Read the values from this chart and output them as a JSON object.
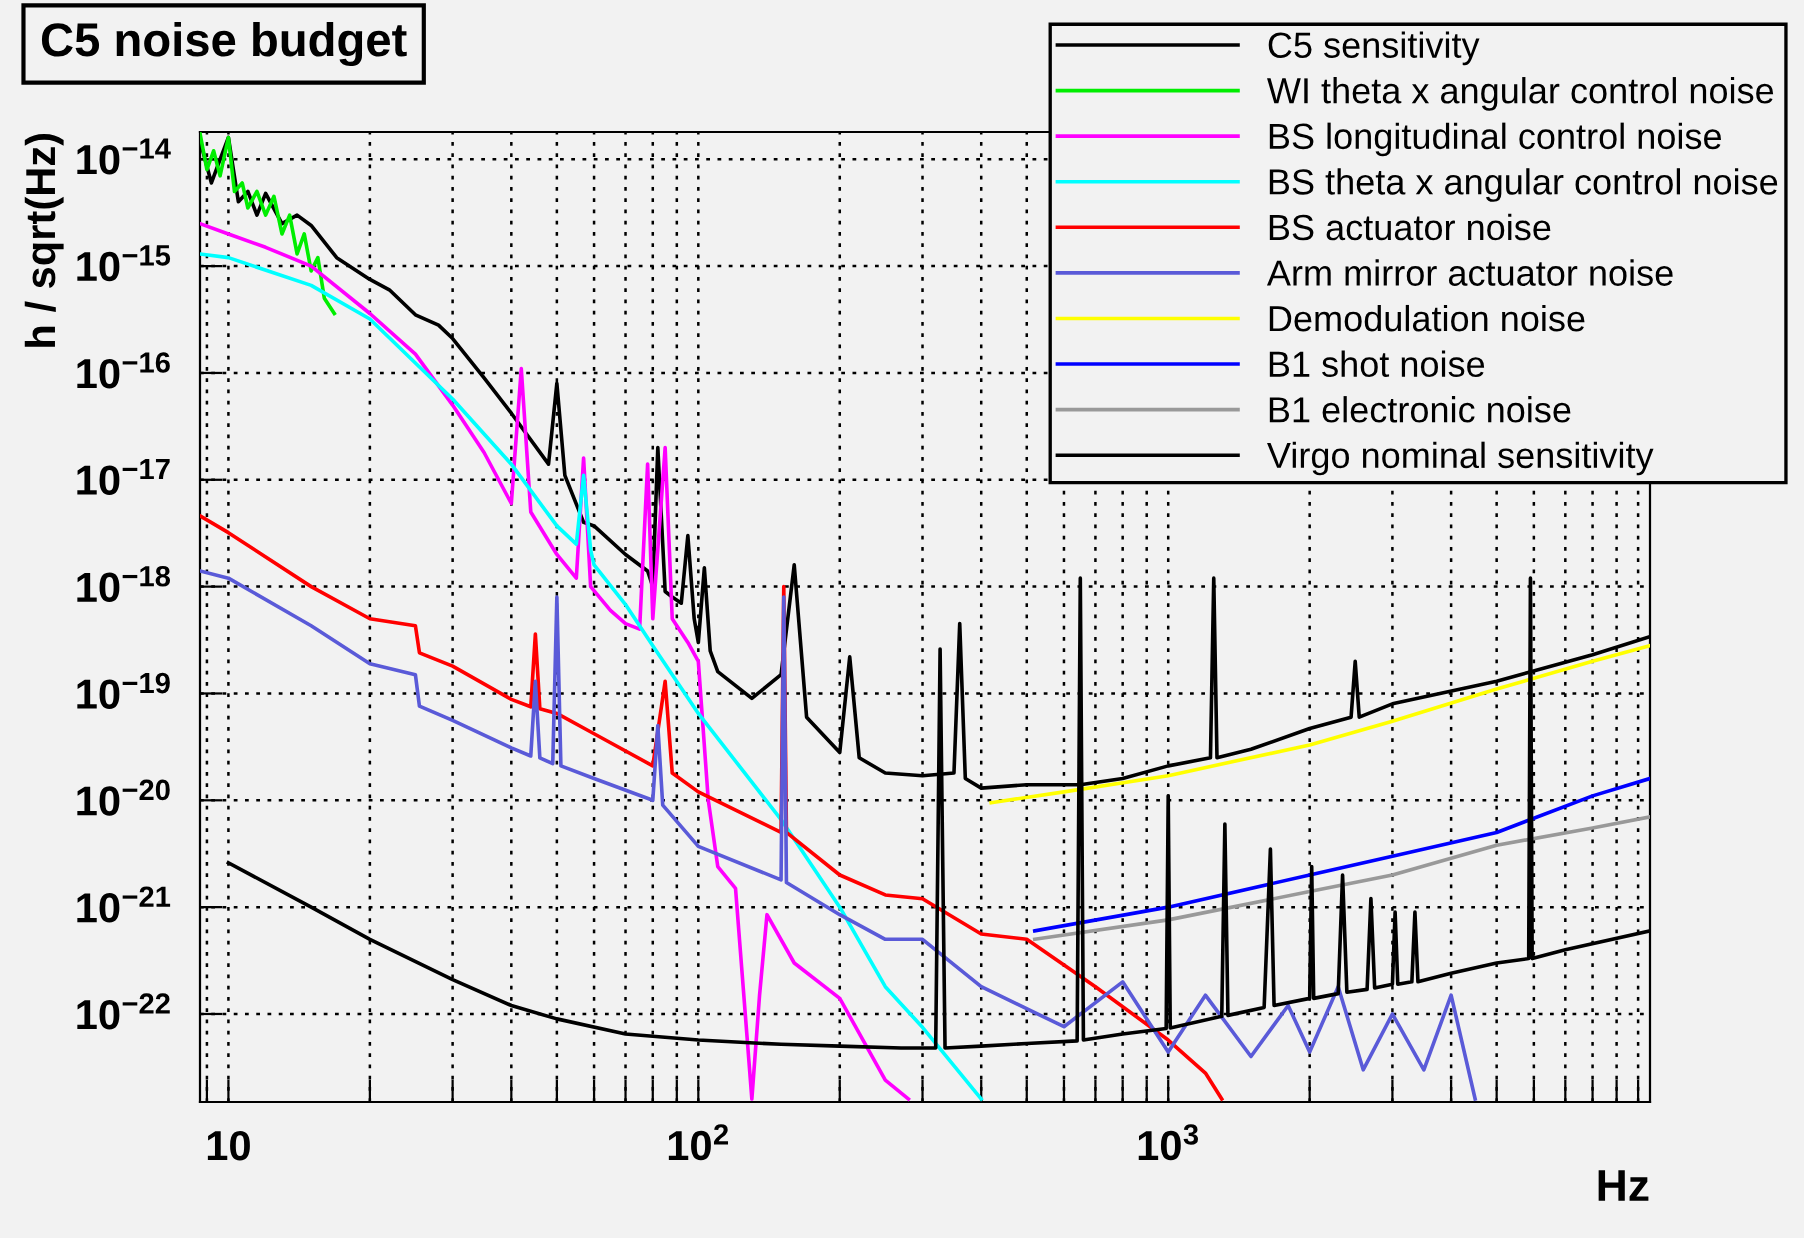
{
  "chart_data": {
    "type": "line",
    "title": "C5 noise budget",
    "xlabel": "Hz",
    "ylabel": "h / sqrt(Hz)",
    "log": "xy",
    "grid": true,
    "legend": "top right",
    "xlim": [
      8.7,
      10600
    ],
    "ylim": [
      1.5e-23,
      1.8e-14
    ],
    "xticks": [
      {
        "value": 9,
        "label": null
      },
      {
        "value": 10,
        "label": "10"
      },
      {
        "value": 20,
        "label": null
      },
      {
        "value": 30,
        "label": null
      },
      {
        "value": 40,
        "label": null
      },
      {
        "value": 50,
        "label": null
      },
      {
        "value": 60,
        "label": null
      },
      {
        "value": 70,
        "label": null
      },
      {
        "value": 80,
        "label": null
      },
      {
        "value": 90,
        "label": null
      },
      {
        "value": 100,
        "label": "10$^{2}$"
      },
      {
        "value": 200,
        "label": null
      },
      {
        "value": 300,
        "label": null
      },
      {
        "value": 400,
        "label": null
      },
      {
        "value": 500,
        "label": null
      },
      {
        "value": 600,
        "label": null
      },
      {
        "value": 700,
        "label": null
      },
      {
        "value": 800,
        "label": null
      },
      {
        "value": 900,
        "label": null
      },
      {
        "value": 1000,
        "label": "10$^{3}$"
      },
      {
        "value": 2000,
        "label": null
      },
      {
        "value": 3000,
        "label": null
      },
      {
        "value": 4000,
        "label": null
      },
      {
        "value": 5000,
        "label": null
      },
      {
        "value": 6000,
        "label": null
      },
      {
        "value": 7000,
        "label": null
      },
      {
        "value": 8000,
        "label": null
      },
      {
        "value": 9000,
        "label": null
      },
      {
        "value": 10000,
        "label": null
      }
    ],
    "yticks": [
      {
        "value": 1e-22,
        "label": "10$^{−22}$"
      },
      {
        "value": 1e-21,
        "label": "10$^{−21}$"
      },
      {
        "value": 1e-20,
        "label": "10$^{−20}$"
      },
      {
        "value": 1e-19,
        "label": "10$^{−19}$"
      },
      {
        "value": 1e-18,
        "label": "10$^{−18}$"
      },
      {
        "value": 1e-17,
        "label": "10$^{−17}$"
      },
      {
        "value": 1e-16,
        "label": "10$^{−16}$"
      },
      {
        "value": 1e-15,
        "label": "10$^{−15}$"
      },
      {
        "value": 1e-14,
        "label": "10$^{−14}$"
      }
    ],
    "series": [
      {
        "name": "C5 sensitivity",
        "color": "#000000",
        "x": [
          8.7,
          9.2,
          9.6,
          10,
          10.5,
          11,
          11.5,
          12,
          13,
          14,
          15,
          17,
          20,
          22,
          25,
          28,
          30,
          35,
          40,
          48,
          50,
          52,
          57,
          60,
          70,
          78,
          80,
          82,
          85,
          88,
          92,
          95,
          98,
          100,
          103,
          106,
          110,
          130,
          150,
          160,
          170,
          200,
          210,
          220,
          250,
          300,
          350,
          360,
          370,
          400,
          500,
          650,
          800,
          1000,
          1230,
          1250,
          1270,
          1500,
          2000,
          2450,
          2500,
          2550,
          3000,
          5000,
          8000,
          10600
        ],
        "values": [
          1.5e-14,
          6e-15,
          1e-14,
          1.6e-14,
          4e-15,
          5e-15,
          3e-15,
          4.8e-15,
          2.5e-15,
          3e-15,
          2.4e-15,
          1.2e-15,
          7.5e-16,
          6e-16,
          3.5e-16,
          2.8e-16,
          2.1e-16,
          9e-17,
          4.2e-17,
          1.4e-17,
          8e-17,
          1.1e-17,
          4e-18,
          3.7e-18,
          2e-18,
          1.4e-18,
          1e-18,
          2e-17,
          9e-19,
          8e-19,
          7e-19,
          3e-18,
          5e-19,
          3e-19,
          1.5e-18,
          2.5e-19,
          1.6e-19,
          9e-20,
          1.5e-19,
          1.6e-18,
          6e-20,
          2.8e-20,
          2.2e-19,
          2.5e-20,
          1.8e-20,
          1.7e-20,
          1.8e-20,
          4.5e-19,
          1.6e-20,
          1.3e-20,
          1.4e-20,
          1.4e-20,
          1.6e-20,
          2.1e-20,
          2.5e-20,
          1.2e-18,
          2.5e-20,
          3e-20,
          4.7e-20,
          6e-20,
          2e-19,
          6e-20,
          8e-20,
          1.3e-19,
          2.3e-19,
          3.4e-19
        ]
      },
      {
        "name": "WI theta x angular control noise",
        "color": "#00ee00",
        "x": [
          8.7,
          9.0,
          9.3,
          9.6,
          10,
          10.3,
          10.7,
          11,
          11.5,
          12,
          12.5,
          13,
          13.5,
          14,
          14.5,
          15,
          15.5,
          16,
          16.8
        ],
        "values": [
          1.75e-14,
          8e-15,
          1.2e-14,
          7e-15,
          1.6e-14,
          5e-15,
          6e-15,
          3.5e-15,
          5e-15,
          3e-15,
          4.5e-15,
          2e-15,
          3e-15,
          1.3e-15,
          2e-15,
          9e-16,
          1.2e-15,
          5e-16,
          3.6e-16
        ]
      },
      {
        "name": "BS longitudinal control noise",
        "color": "#ff00ff",
        "x": [
          8.7,
          10,
          12,
          15,
          20,
          25,
          30,
          35,
          40,
          42,
          44,
          50,
          55,
          57,
          59,
          65,
          70,
          75,
          78,
          80,
          85,
          88,
          90,
          95,
          100,
          105,
          110,
          120,
          130,
          135,
          140,
          160,
          200,
          250,
          280
        ],
        "values": [
          2.5e-15,
          2e-15,
          1.5e-15,
          1e-15,
          3.6e-16,
          1.5e-16,
          5e-17,
          1.8e-17,
          6e-18,
          1.1e-16,
          5e-18,
          2e-18,
          1.2e-18,
          1.6e-17,
          1e-18,
          6e-19,
          4.5e-19,
          4e-19,
          1.4e-17,
          5e-19,
          2e-17,
          5e-19,
          4.3e-19,
          3e-19,
          2e-19,
          1e-20,
          2.4e-21,
          1.5e-21,
          1.6e-23,
          1.5e-22,
          8.5e-22,
          3e-22,
          1.4e-22,
          2.4e-23,
          1.6e-23
        ]
      },
      {
        "name": "BS theta x angular control noise",
        "color": "#00ffff",
        "x": [
          8.7,
          10,
          15,
          20,
          30,
          40,
          50,
          55,
          57,
          59,
          60,
          70,
          80,
          100,
          150,
          200,
          250,
          300,
          400
        ],
        "values": [
          1.3e-15,
          1.2e-15,
          6.6e-16,
          3.2e-16,
          5.7e-17,
          1.4e-17,
          3.7e-18,
          2.5e-18,
          1.1e-17,
          2.2e-18,
          1.6e-18,
          6.8e-19,
          2.8e-19,
          6.5e-20,
          6.6e-21,
          1e-21,
          1.8e-22,
          7.5e-23,
          1.6e-23
        ]
      },
      {
        "name": "BS actuator noise",
        "color": "#ff0000",
        "x": [
          8.7,
          10,
          15,
          20,
          25,
          25.5,
          30,
          40,
          44,
          45,
          46,
          50,
          60,
          80,
          85,
          88,
          100,
          150,
          152,
          154,
          200,
          250,
          300,
          400,
          500,
          700,
          1000,
          1200,
          1300
        ],
        "values": [
          4.6e-18,
          3.2e-18,
          1e-18,
          5e-19,
          4.3e-19,
          2.4e-19,
          1.8e-19,
          8.8e-20,
          7.5e-20,
          3.6e-19,
          7.2e-20,
          6.5e-20,
          4.2e-20,
          2.1e-20,
          1.3e-19,
          1.8e-20,
          1.2e-20,
          5e-21,
          1e-18,
          5e-21,
          2e-21,
          1.3e-21,
          1.2e-21,
          5.6e-22,
          5e-22,
          1.8e-22,
          5.7e-23,
          2.8e-23,
          1.6e-23
        ]
      },
      {
        "name": "Arm mirror actuator noise",
        "color": "#5a5ad8",
        "x": [
          8.7,
          10,
          15,
          20,
          25,
          25.5,
          30,
          40,
          44,
          45,
          46,
          49,
          50,
          51,
          60,
          80,
          82,
          84,
          100,
          150,
          152,
          154,
          200,
          250,
          300,
          400,
          600,
          800,
          1000,
          1200,
          1500,
          1800,
          2000,
          2300,
          2600,
          3000,
          3500,
          4000,
          4500
        ],
        "values": [
          1.4e-18,
          1.2e-18,
          4.3e-19,
          1.9e-19,
          1.5e-19,
          7.6e-20,
          5.6e-20,
          3.1e-20,
          2.6e-20,
          1.3e-19,
          2.5e-20,
          2.2e-20,
          8e-19,
          2.1e-20,
          1.6e-20,
          1e-20,
          5e-20,
          9e-21,
          3.7e-21,
          1.8e-21,
          8e-19,
          1.7e-21,
          8.5e-22,
          5e-22,
          5e-22,
          1.8e-22,
          7.6e-23,
          2e-22,
          4.4e-23,
          1.5e-22,
          4e-23,
          1.2e-22,
          4.4e-23,
          1.8e-22,
          3e-23,
          1e-22,
          3e-23,
          1.5e-22,
          1.6e-23
        ]
      },
      {
        "name": "Demodulation noise",
        "color": "#ffff00",
        "x": [
          420,
          600,
          1000,
          2000,
          3000,
          5000,
          8000,
          10600
        ],
        "values": [
          9.5e-21,
          1.2e-20,
          1.7e-20,
          3.3e-20,
          5.5e-20,
          1.1e-19,
          2e-19,
          2.8e-19
        ]
      },
      {
        "name": "B1 shot noise",
        "color": "#0000ff",
        "x": [
          520,
          1000,
          2000,
          3000,
          5000,
          8000,
          10600
        ],
        "values": [
          6e-22,
          1e-21,
          2e-21,
          3e-21,
          5e-21,
          1.1e-20,
          1.6e-20
        ]
      },
      {
        "name": "B1 electronic noise",
        "color": "#999999",
        "x": [
          520,
          1000,
          2000,
          3000,
          5000,
          8000,
          10600
        ],
        "values": [
          5e-22,
          7.6e-22,
          1.4e-21,
          2e-21,
          3.8e-21,
          5.5e-21,
          7e-21
        ]
      },
      {
        "name": "Virgo nominal sensitivity",
        "color": "#000000",
        "x": [
          10,
          15,
          20,
          30,
          40,
          50,
          70,
          100,
          150,
          200,
          270,
          320,
          327,
          335,
          400,
          500,
          640,
          650,
          660,
          800,
          990,
          1000,
          1010,
          1300,
          1320,
          1340,
          1600,
          1650,
          1680,
          2000,
          2020,
          2040,
          2300,
          2350,
          2400,
          2650,
          2700,
          2750,
          3000,
          3040,
          3080,
          3300,
          3350,
          3400,
          4000,
          5000,
          5850,
          5900,
          5950,
          7000,
          10600
        ],
        "values": [
          2.6e-21,
          1e-21,
          5e-22,
          2.1e-22,
          1.2e-22,
          9e-23,
          6.5e-23,
          5.7e-23,
          5.2e-23,
          5e-23,
          4.8e-23,
          4.8e-23,
          2.6e-19,
          4.8e-23,
          5e-23,
          5.3e-23,
          5.6e-23,
          1.2e-18,
          5.7e-23,
          6.5e-23,
          7.3e-23,
          1.1e-20,
          7.4e-23,
          9.5e-23,
          6e-21,
          9.7e-23,
          1.15e-22,
          3.5e-21,
          1.2e-22,
          1.4e-22,
          2.4e-21,
          1.4e-22,
          1.55e-22,
          2e-21,
          1.6e-22,
          1.7e-22,
          1.2e-21,
          1.75e-22,
          1.9e-22,
          9e-22,
          1.9e-22,
          2e-22,
          9e-22,
          2e-22,
          2.4e-22,
          3e-22,
          3.3e-22,
          1.2e-18,
          3.3e-22,
          4e-22,
          6e-22
        ]
      }
    ]
  }
}
